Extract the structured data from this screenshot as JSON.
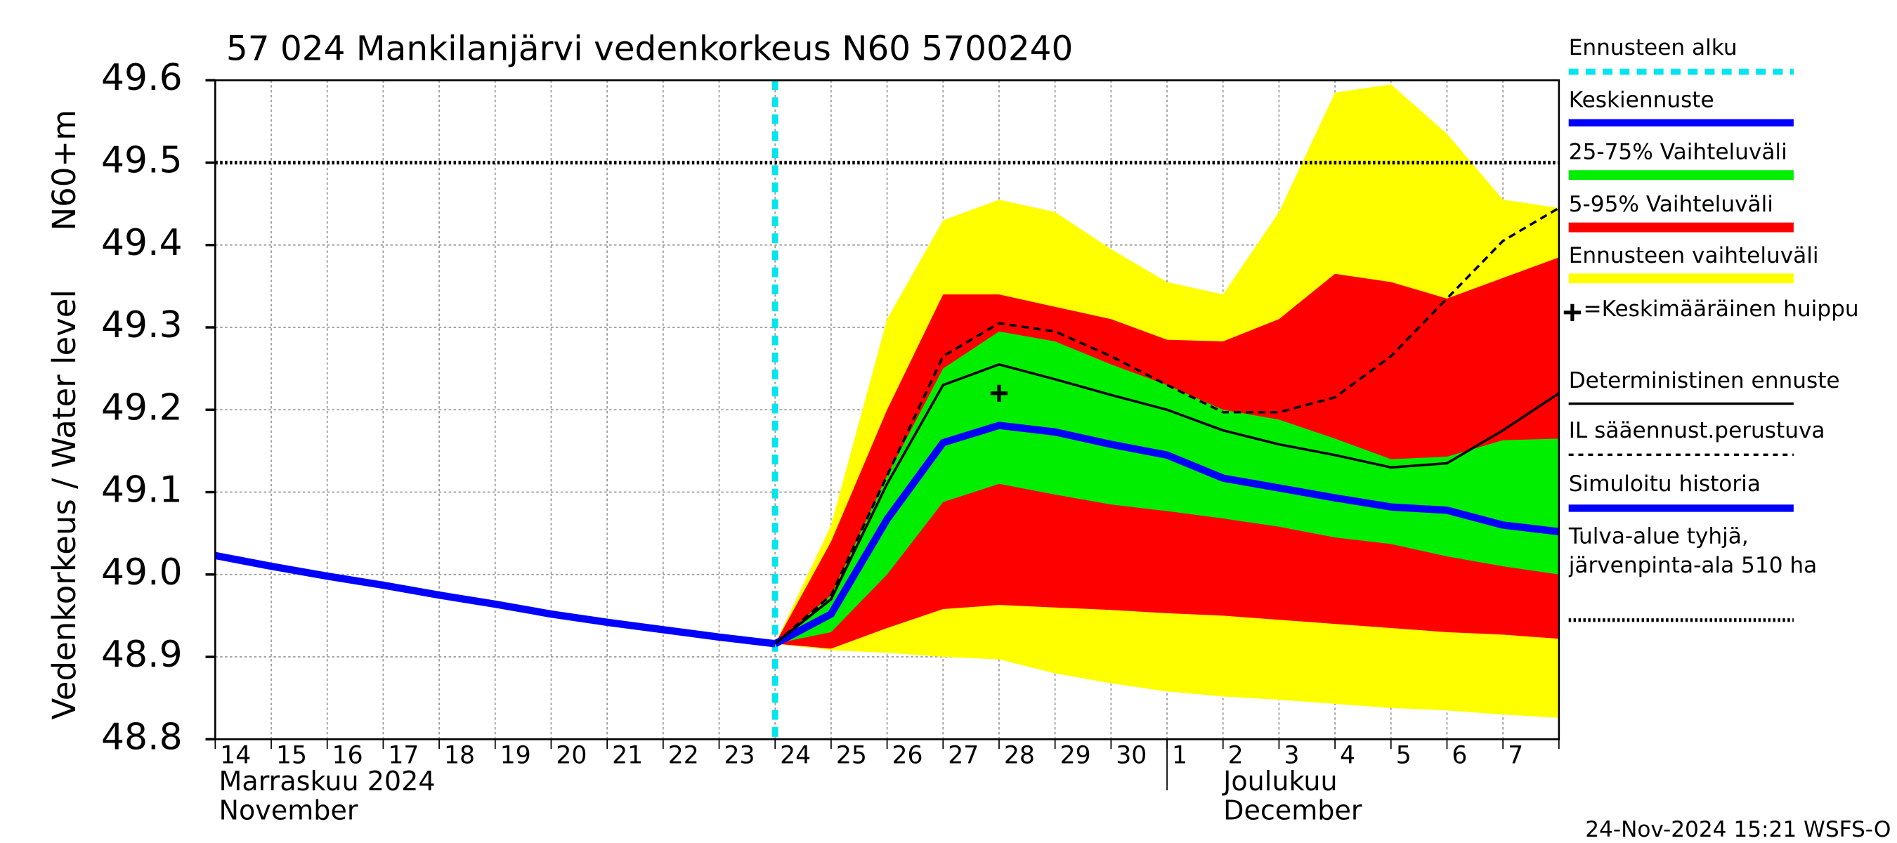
{
  "chart_data": {
    "type": "line",
    "title": "57 024 Mankilanjärvi vedenkorkeus N60 5700240",
    "y_label": "Vedenkorkeus / Water level",
    "y_unit_label": "N60+m",
    "month_labels": [
      "Marraskuu 2024",
      "November",
      "Joulukuu",
      "December"
    ],
    "timestamp": "24-Nov-2024 15:21 WSFS-O",
    "categories": [
      "14",
      "15",
      "16",
      "17",
      "18",
      "19",
      "20",
      "21",
      "22",
      "23",
      "24",
      "25",
      "26",
      "27",
      "28",
      "29",
      "30",
      "1",
      "2",
      "3",
      "4",
      "5",
      "6",
      "7",
      null
    ],
    "ylim": [
      48.8,
      49.6
    ],
    "yticks": [
      48.8,
      48.9,
      {
        "value": 49,
        "label": "49.0"
      },
      49.1,
      49.2,
      49.3,
      49.4,
      49.5,
      49.6
    ],
    "grid": true,
    "series": [
      {
        "name": "Ennusteen alku",
        "color": "#00e5ee",
        "style": "vline",
        "category": "24"
      },
      {
        "name": "Keskiennuste",
        "color": "#0000ff",
        "style": "line",
        "width": 6,
        "values": [
          null,
          null,
          null,
          null,
          null,
          null,
          null,
          null,
          null,
          null,
          48.916,
          48.952,
          49.067,
          49.16,
          49.181,
          49.173,
          49.158,
          49.145,
          49.117,
          49.105,
          49.093,
          49.082,
          49.078,
          49.06,
          49.052
        ]
      },
      {
        "name": "25-75% Vaihteluväli",
        "color": "#00ee00",
        "style": "band",
        "lower": [
          null,
          null,
          null,
          null,
          null,
          null,
          null,
          null,
          null,
          null,
          48.916,
          48.93,
          49.0,
          49.088,
          49.11,
          49.097,
          49.085,
          49.077,
          49.068,
          49.058,
          49.045,
          49.037,
          49.022,
          49.01,
          49.0
        ],
        "upper": [
          null,
          null,
          null,
          null,
          null,
          null,
          null,
          null,
          null,
          null,
          48.916,
          48.975,
          49.12,
          49.25,
          49.295,
          49.283,
          49.255,
          49.23,
          49.2,
          49.188,
          49.165,
          49.14,
          49.143,
          49.163,
          49.165
        ]
      },
      {
        "name": "5-95% Vaihteluväli",
        "color": "#ff0000",
        "style": "band",
        "lower": [
          null,
          null,
          null,
          null,
          null,
          null,
          null,
          null,
          null,
          null,
          48.916,
          48.91,
          48.935,
          48.958,
          48.963,
          48.96,
          48.957,
          48.953,
          48.95,
          48.945,
          48.94,
          48.935,
          48.93,
          48.927,
          48.922
        ],
        "upper": [
          null,
          null,
          null,
          null,
          null,
          null,
          null,
          null,
          null,
          null,
          48.916,
          49.04,
          49.2,
          49.34,
          49.34,
          49.325,
          49.31,
          49.285,
          49.283,
          49.31,
          49.365,
          49.355,
          49.335,
          49.36,
          49.385
        ]
      },
      {
        "name": "Ennusteen vaihteluväli",
        "color": "#ffff00",
        "style": "band",
        "lower": [
          null,
          null,
          null,
          null,
          null,
          null,
          null,
          null,
          null,
          null,
          48.916,
          48.908,
          48.905,
          48.9,
          48.897,
          48.88,
          48.868,
          48.858,
          48.852,
          48.848,
          48.843,
          48.838,
          48.835,
          48.83,
          48.826
        ],
        "upper": [
          null,
          null,
          null,
          null,
          null,
          null,
          null,
          null,
          null,
          null,
          48.916,
          49.06,
          49.31,
          49.43,
          49.455,
          49.44,
          49.395,
          49.355,
          49.34,
          49.44,
          49.585,
          49.595,
          49.535,
          49.455,
          49.445
        ]
      },
      {
        "name": "=Keskimääräinen huippu",
        "color": "#000000",
        "style": "marker",
        "values": [
          null,
          null,
          null,
          null,
          null,
          null,
          null,
          null,
          null,
          null,
          null,
          null,
          null,
          null,
          49.22,
          null,
          null,
          null,
          null,
          null,
          null,
          null,
          null,
          null,
          null
        ]
      },
      {
        "name": "Deterministinen ennuste",
        "color": "#000000",
        "style": "line",
        "width": 2,
        "values": [
          null,
          null,
          null,
          null,
          null,
          null,
          null,
          null,
          null,
          null,
          48.916,
          48.97,
          49.11,
          49.23,
          49.255,
          49.237,
          49.218,
          49.2,
          49.175,
          49.158,
          49.145,
          49.13,
          49.135,
          49.175,
          49.22
        ]
      },
      {
        "name": "IL sääennust.perustuva",
        "color": "#000000",
        "style": "dashed",
        "width": 2,
        "values": [
          null,
          null,
          null,
          null,
          null,
          null,
          null,
          null,
          null,
          null,
          48.916,
          48.975,
          49.12,
          49.265,
          49.305,
          49.295,
          49.265,
          49.23,
          49.197,
          49.197,
          49.215,
          49.265,
          49.335,
          49.405,
          49.445
        ]
      },
      {
        "name": "Simuloitu historia",
        "color": "#0000ff",
        "style": "line",
        "width": 6,
        "values": [
          49.023,
          49.01,
          48.998,
          48.987,
          48.975,
          48.964,
          48.952,
          48.942,
          48.933,
          48.924,
          48.916,
          null,
          null,
          null,
          null,
          null,
          null,
          null,
          null,
          null,
          null,
          null,
          null,
          null,
          null
        ]
      },
      {
        "name": "Tulva-alue tyhjä, järvenpinta-ala 510 ha",
        "color": "#000000",
        "style": "hline",
        "value": 49.5
      }
    ]
  }
}
